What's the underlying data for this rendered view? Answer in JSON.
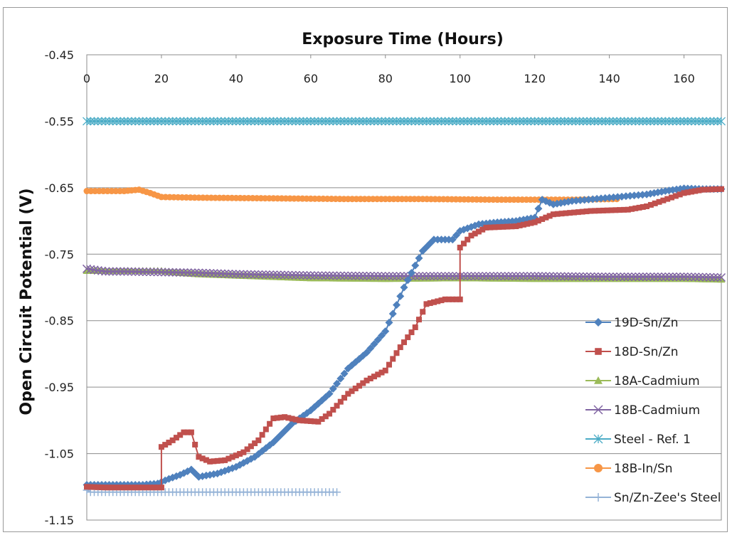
{
  "chart_data": {
    "type": "line",
    "title": "Exposure Time (Hours)",
    "xlabel": "Exposure Time (Hours)",
    "ylabel": "Open Circuit Potential (V)",
    "xlim": [
      0,
      170
    ],
    "ylim": [
      -1.15,
      -0.45
    ],
    "x_ticks": [
      0,
      20,
      40,
      60,
      80,
      100,
      120,
      140,
      160
    ],
    "y_ticks": [
      -0.45,
      -0.55,
      -0.65,
      -0.75,
      -0.85,
      -0.95,
      -1.05,
      -1.15
    ],
    "x_axis_position": "top",
    "grid": "horizontal",
    "legend_position": "right",
    "series": [
      {
        "name": "19D-Sn/Zn",
        "color": "#4f81bd",
        "marker": "diamond",
        "points": [
          [
            0,
            -1.097
          ],
          [
            5,
            -1.097
          ],
          [
            10,
            -1.097
          ],
          [
            15,
            -1.097
          ],
          [
            19,
            -1.095
          ],
          [
            22,
            -1.088
          ],
          [
            25,
            -1.082
          ],
          [
            28,
            -1.074
          ],
          [
            30,
            -1.085
          ],
          [
            35,
            -1.08
          ],
          [
            40,
            -1.07
          ],
          [
            45,
            -1.055
          ],
          [
            50,
            -1.033
          ],
          [
            55,
            -1.005
          ],
          [
            60,
            -0.985
          ],
          [
            65,
            -0.96
          ],
          [
            70,
            -0.922
          ],
          [
            75,
            -0.898
          ],
          [
            80,
            -0.866
          ],
          [
            85,
            -0.8
          ],
          [
            90,
            -0.745
          ],
          [
            93,
            -0.728
          ],
          [
            98,
            -0.728
          ],
          [
            100,
            -0.715
          ],
          [
            105,
            -0.705
          ],
          [
            110,
            -0.702
          ],
          [
            115,
            -0.7
          ],
          [
            120,
            -0.695
          ],
          [
            122,
            -0.668
          ],
          [
            125,
            -0.675
          ],
          [
            130,
            -0.67
          ],
          [
            140,
            -0.665
          ],
          [
            150,
            -0.66
          ],
          [
            155,
            -0.655
          ],
          [
            160,
            -0.651
          ],
          [
            165,
            -0.652
          ],
          [
            170,
            -0.652
          ]
        ]
      },
      {
        "name": "18D-Sn/Zn",
        "color": "#c0504d",
        "marker": "square",
        "points": [
          [
            0,
            -1.1
          ],
          [
            5,
            -1.101
          ],
          [
            10,
            -1.101
          ],
          [
            15,
            -1.101
          ],
          [
            20,
            -1.101
          ],
          [
            20,
            -1.04
          ],
          [
            23,
            -1.03
          ],
          [
            26,
            -1.018
          ],
          [
            28,
            -1.018
          ],
          [
            30,
            -1.055
          ],
          [
            33,
            -1.062
          ],
          [
            37,
            -1.06
          ],
          [
            42,
            -1.048
          ],
          [
            46,
            -1.03
          ],
          [
            50,
            -0.997
          ],
          [
            53,
            -0.995
          ],
          [
            57,
            -1.0
          ],
          [
            62,
            -1.002
          ],
          [
            65,
            -0.99
          ],
          [
            70,
            -0.96
          ],
          [
            75,
            -0.94
          ],
          [
            80,
            -0.925
          ],
          [
            84,
            -0.89
          ],
          [
            88,
            -0.86
          ],
          [
            91,
            -0.825
          ],
          [
            96,
            -0.818
          ],
          [
            100,
            -0.818
          ],
          [
            100,
            -0.74
          ],
          [
            103,
            -0.722
          ],
          [
            107,
            -0.71
          ],
          [
            115,
            -0.708
          ],
          [
            120,
            -0.702
          ],
          [
            125,
            -0.69
          ],
          [
            135,
            -0.685
          ],
          [
            145,
            -0.683
          ],
          [
            150,
            -0.678
          ],
          [
            160,
            -0.658
          ],
          [
            165,
            -0.653
          ],
          [
            170,
            -0.652
          ]
        ]
      },
      {
        "name": "18A-Cadmium",
        "color": "#9bbb59",
        "marker": "triangle",
        "points": [
          [
            0,
            -0.775
          ],
          [
            10,
            -0.775
          ],
          [
            20,
            -0.775
          ],
          [
            25,
            -0.778
          ],
          [
            30,
            -0.78
          ],
          [
            40,
            -0.782
          ],
          [
            60,
            -0.786
          ],
          [
            80,
            -0.787
          ],
          [
            100,
            -0.786
          ],
          [
            120,
            -0.787
          ],
          [
            140,
            -0.787
          ],
          [
            160,
            -0.787
          ],
          [
            170,
            -0.788
          ]
        ]
      },
      {
        "name": "18B-Cadmium",
        "color": "#8064a2",
        "marker": "x",
        "points": [
          [
            0,
            -0.772
          ],
          [
            5,
            -0.776
          ],
          [
            10,
            -0.776
          ],
          [
            20,
            -0.777
          ],
          [
            30,
            -0.778
          ],
          [
            40,
            -0.78
          ],
          [
            60,
            -0.782
          ],
          [
            80,
            -0.783
          ],
          [
            100,
            -0.783
          ],
          [
            120,
            -0.783
          ],
          [
            140,
            -0.784
          ],
          [
            160,
            -0.784
          ],
          [
            170,
            -0.785
          ]
        ]
      },
      {
        "name": "Steel - Ref. 1",
        "color": "#4bacc6",
        "marker": "star",
        "points": [
          [
            0,
            -0.55
          ],
          [
            10,
            -0.55
          ],
          [
            20,
            -0.55
          ],
          [
            40,
            -0.55
          ],
          [
            60,
            -0.55
          ],
          [
            80,
            -0.55
          ],
          [
            100,
            -0.55
          ],
          [
            120,
            -0.55
          ],
          [
            140,
            -0.55
          ],
          [
            160,
            -0.55
          ],
          [
            170,
            -0.55
          ]
        ]
      },
      {
        "name": "18B-In/Sn",
        "color": "#f79646",
        "marker": "circle",
        "points": [
          [
            0,
            -0.655
          ],
          [
            10,
            -0.655
          ],
          [
            14,
            -0.653
          ],
          [
            17,
            -0.658
          ],
          [
            20,
            -0.664
          ],
          [
            30,
            -0.665
          ],
          [
            50,
            -0.666
          ],
          [
            70,
            -0.667
          ],
          [
            90,
            -0.667
          ],
          [
            110,
            -0.668
          ],
          [
            130,
            -0.668
          ],
          [
            142,
            -0.667
          ]
        ]
      },
      {
        "name": "Sn/Zn-Zee's Steel",
        "color": "#95b3d7",
        "marker": "plus",
        "points": [
          [
            0,
            -1.105
          ],
          [
            1,
            -1.108
          ],
          [
            10,
            -1.108
          ],
          [
            20,
            -1.108
          ],
          [
            30,
            -1.108
          ],
          [
            40,
            -1.108
          ],
          [
            50,
            -1.108
          ],
          [
            60,
            -1.108
          ],
          [
            67,
            -1.108
          ]
        ]
      }
    ]
  }
}
